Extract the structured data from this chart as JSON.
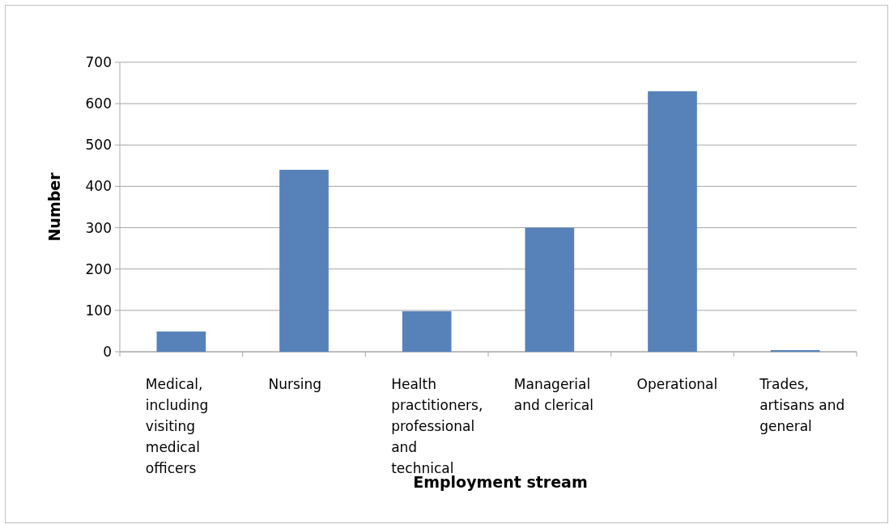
{
  "chart_data": {
    "type": "bar",
    "xlabel": "Employment stream",
    "ylabel": "Number",
    "categories": [
      "Medical, including visiting medical officers",
      "Nursing",
      "Health practitioners, professional and technical",
      "Managerial and clerical",
      "Operational",
      "Trades, artisans and general"
    ],
    "values": [
      49,
      440,
      98,
      300,
      630,
      4
    ],
    "color": "#5682b9",
    "ylim": [
      0,
      700
    ],
    "yticks": [
      0,
      100,
      200,
      300,
      400,
      500,
      600,
      700
    ],
    "grid": "y"
  }
}
